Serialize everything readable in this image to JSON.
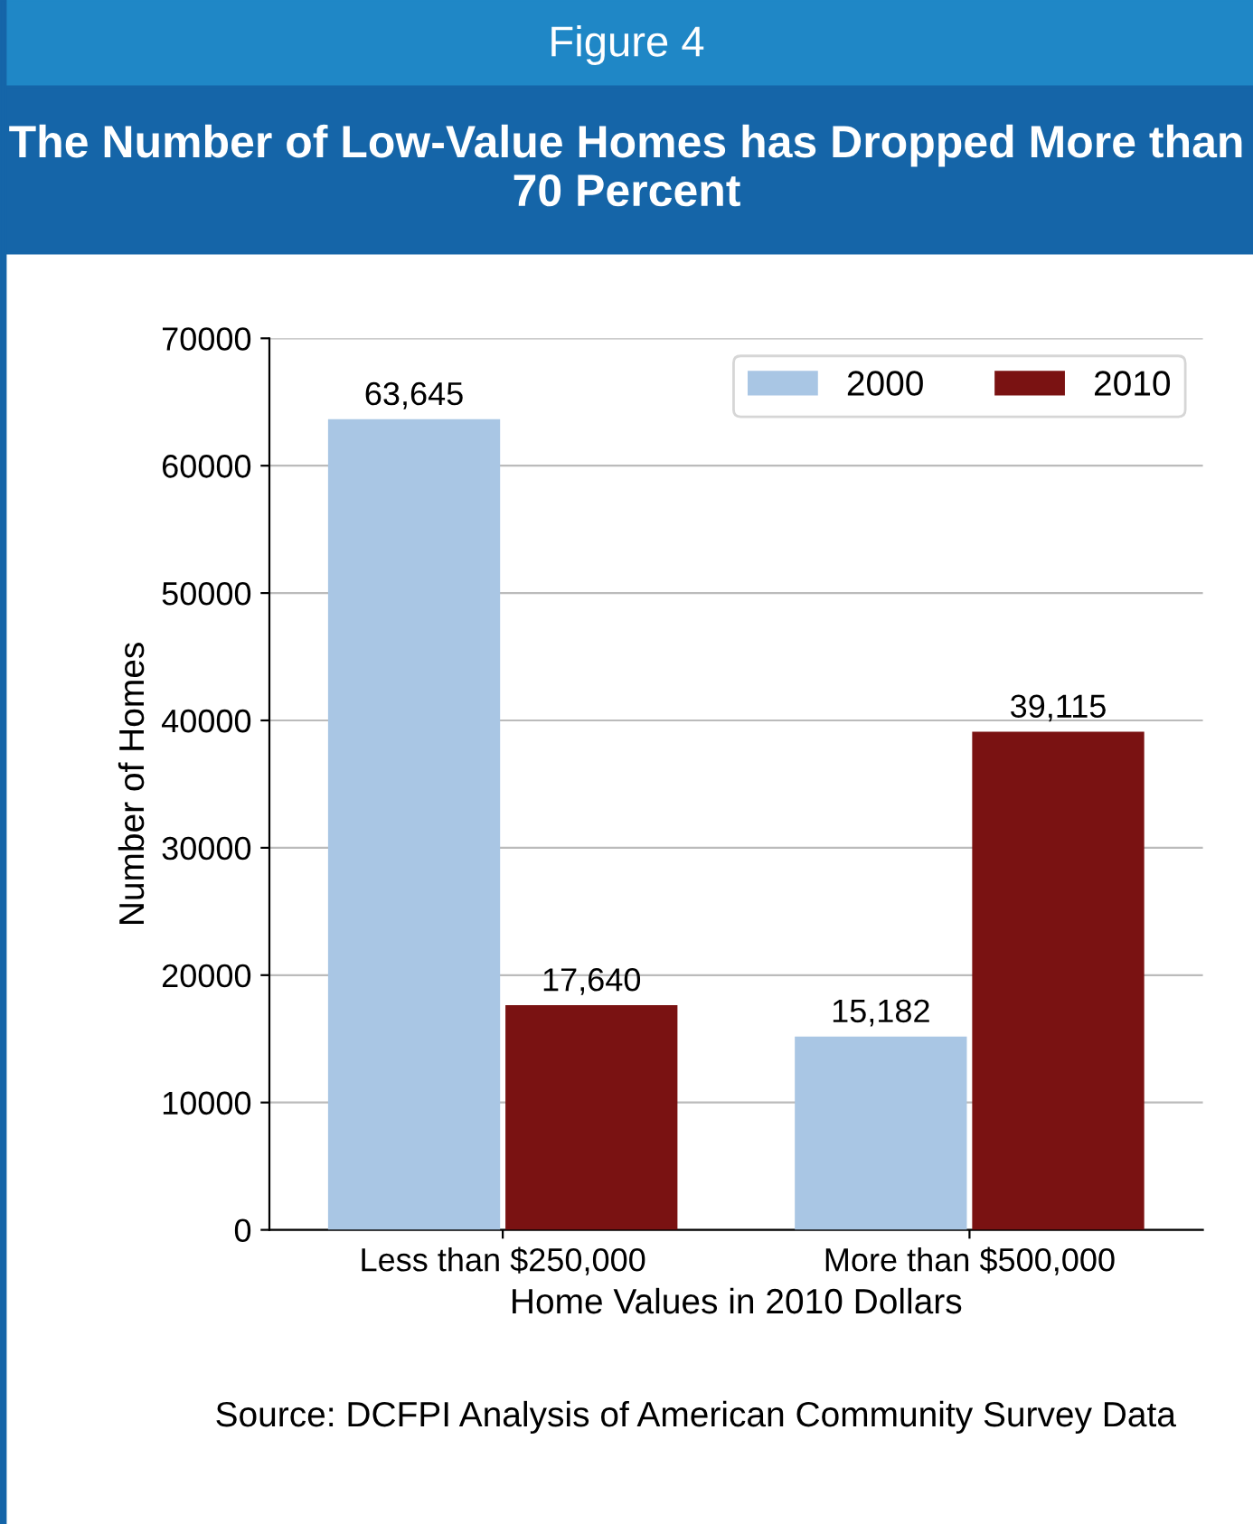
{
  "chart_data": {
    "type": "bar",
    "title": "Figure 4",
    "subtitle": "The Number of Low-Value Homes has Dropped More than 70 Percent",
    "xlabel": "Home Values in 2010 Dollars",
    "ylabel": "Number of Homes",
    "categories": [
      "Less than $250,000",
      "More than $500,000"
    ],
    "series": [
      {
        "name": "2000",
        "color": "#a9c6e4",
        "values": [
          63645,
          15182
        ],
        "value_labels": [
          "63,645",
          "15,182"
        ]
      },
      {
        "name": "2010",
        "color": "#7a1212",
        "values": [
          17640,
          39115
        ],
        "value_labels": [
          "17,640",
          "39,115"
        ]
      }
    ],
    "ylim": [
      0,
      70000
    ],
    "yticks": [
      0,
      10000,
      20000,
      30000,
      40000,
      50000,
      60000,
      70000
    ],
    "grid": "y",
    "legend": "top right",
    "annotations": [
      "Source: DCFPI Analysis of American Community Survey Data"
    ]
  }
}
